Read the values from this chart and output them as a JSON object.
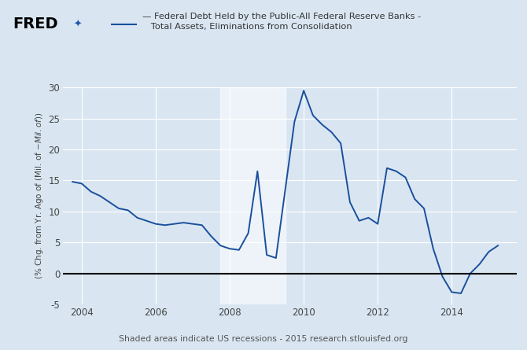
{
  "title_line1": "Federal Debt Held by the Public-All Federal Reserve Banks -",
  "title_line2": "Total Assets, Eliminations from Consolidation",
  "ylabel": "(% Chg. from Yr. Ago of (Mil. of $-Mil. of $))",
  "footer": "Shaded areas indicate US recessions - 2015 research.stlouisfed.org",
  "line_color": "#1a4f9c",
  "zero_line_color": "#000000",
  "recession_color": "#e0e0e0",
  "background_color": "#d9e6f2",
  "plot_bg_color": "#d9e6f2",
  "grid_color": "#ffffff",
  "ylim": [
    -5,
    30
  ],
  "yticks": [
    -5,
    0,
    5,
    10,
    15,
    20,
    25,
    30
  ],
  "recession_start": 2007.75,
  "recession_end": 2009.5,
  "dates": [
    2003.75,
    2004.0,
    2004.25,
    2004.5,
    2004.75,
    2005.0,
    2005.25,
    2005.5,
    2005.75,
    2006.0,
    2006.25,
    2006.5,
    2006.75,
    2007.0,
    2007.25,
    2007.5,
    2007.75,
    2008.0,
    2008.25,
    2008.5,
    2008.75,
    2009.0,
    2009.25,
    2009.5,
    2009.75,
    2010.0,
    2010.25,
    2010.5,
    2010.75,
    2011.0,
    2011.25,
    2011.5,
    2011.75,
    2012.0,
    2012.25,
    2012.5,
    2012.75,
    2013.0,
    2013.25,
    2013.5,
    2013.75,
    2014.0,
    2014.25,
    2014.5,
    2014.75,
    2015.0,
    2015.25
  ],
  "values": [
    14.8,
    14.5,
    13.2,
    12.5,
    11.5,
    10.5,
    10.2,
    9.0,
    8.5,
    8.0,
    7.8,
    8.0,
    8.2,
    8.0,
    7.8,
    6.0,
    4.5,
    4.0,
    3.8,
    6.5,
    16.5,
    3.0,
    2.5,
    13.5,
    24.5,
    29.5,
    25.5,
    24.0,
    22.8,
    21.0,
    11.5,
    8.5,
    9.0,
    8.0,
    17.0,
    16.5,
    15.5,
    12.0,
    10.5,
    4.0,
    -0.5,
    -3.0,
    -3.2,
    0.0,
    1.5,
    3.5,
    4.5
  ],
  "xlim": [
    2003.5,
    2015.75
  ],
  "xticks": [
    2004,
    2006,
    2008,
    2010,
    2012,
    2014
  ],
  "fred_color": "#000000",
  "fred_bg": "#ffffff"
}
